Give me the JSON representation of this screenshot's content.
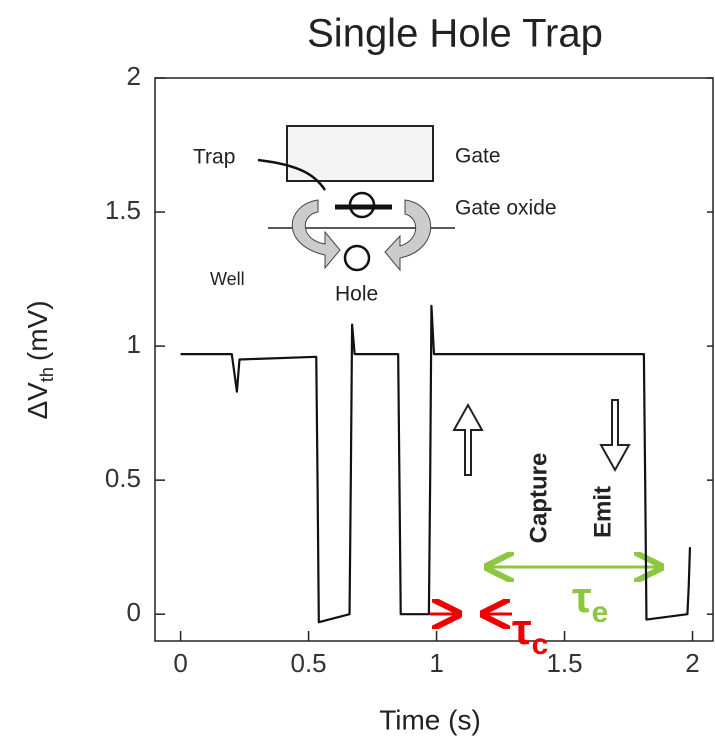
{
  "chart_data": {
    "type": "line",
    "title": "Single Hole Trap",
    "x_label": "Time (s)",
    "y_label": {
      "main": "ΔV",
      "sub": "th",
      "unit": "(mV)"
    },
    "xlim": [
      -0.1,
      2.08
    ],
    "ylim": [
      -0.1,
      2
    ],
    "xticks": [
      0,
      0.5,
      1,
      1.5,
      2
    ],
    "yticks": [
      0,
      0.5,
      1,
      1.5,
      2
    ],
    "series": [
      {
        "color": "#111111",
        "x": [
          0,
          0.2,
          0.21,
          0.22,
          0.23,
          0.53,
          0.535,
          0.54,
          0.66,
          0.665,
          0.67,
          0.68,
          0.85,
          0.855,
          0.86,
          0.97,
          0.975,
          0.98,
          0.99,
          1.81,
          1.815,
          1.82,
          1.98,
          1.985,
          1.99
        ],
        "values": [
          0.97,
          0.97,
          0.9,
          0.83,
          0.95,
          0.96,
          0.5,
          -0.03,
          0.0,
          0.5,
          1.08,
          0.97,
          0.97,
          0.5,
          0.0,
          0.0,
          0.5,
          1.15,
          0.97,
          0.97,
          0.5,
          -0.02,
          0.0,
          0.1,
          0.25
        ]
      }
    ],
    "annotations": {
      "capture": "Capture",
      "emit": "Emit",
      "tau_c": {
        "base": "τ",
        "sub": "c"
      },
      "tau_e": {
        "base": "τ",
        "sub": "e"
      }
    },
    "inset_labels": {
      "trap": "Trap",
      "gate": "Gate",
      "gate_oxide": "Gate oxide",
      "well": "Well",
      "hole": "Hole"
    }
  }
}
